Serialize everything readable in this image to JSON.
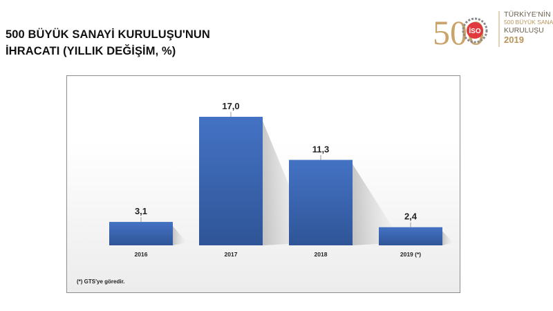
{
  "header": {
    "title_line1": "500 BÜYÜK SANAYİ KURULUŞU'NUN",
    "title_line2": "İHRACATI (YILLIK DEĞİŞİM, %)"
  },
  "logo": {
    "big_number": "500",
    "emblem_text": "İSO",
    "line1": "TÜRKİYE'NİN",
    "line2": "500 BÜYÜK SANAYİ",
    "line3": "KURULUŞU",
    "line4": "2019"
  },
  "footnote": "(*) GTS'ye göredir.",
  "colors": {
    "bar": "#4472c4",
    "bar_dark": "#2f5597",
    "gold": "#c9a46a",
    "emblem_red": "#e03a3e"
  },
  "chart_data": {
    "type": "bar",
    "categories": [
      "2016",
      "2017",
      "2018",
      "2019 (*)"
    ],
    "values": [
      3.1,
      17.0,
      11.3,
      2.4
    ],
    "value_labels": [
      "3,1",
      "17,0",
      "11,3",
      "2,4"
    ],
    "title": "",
    "xlabel": "",
    "ylabel": "",
    "ylim": [
      0,
      17.0
    ],
    "grid": false,
    "legend": "none"
  }
}
